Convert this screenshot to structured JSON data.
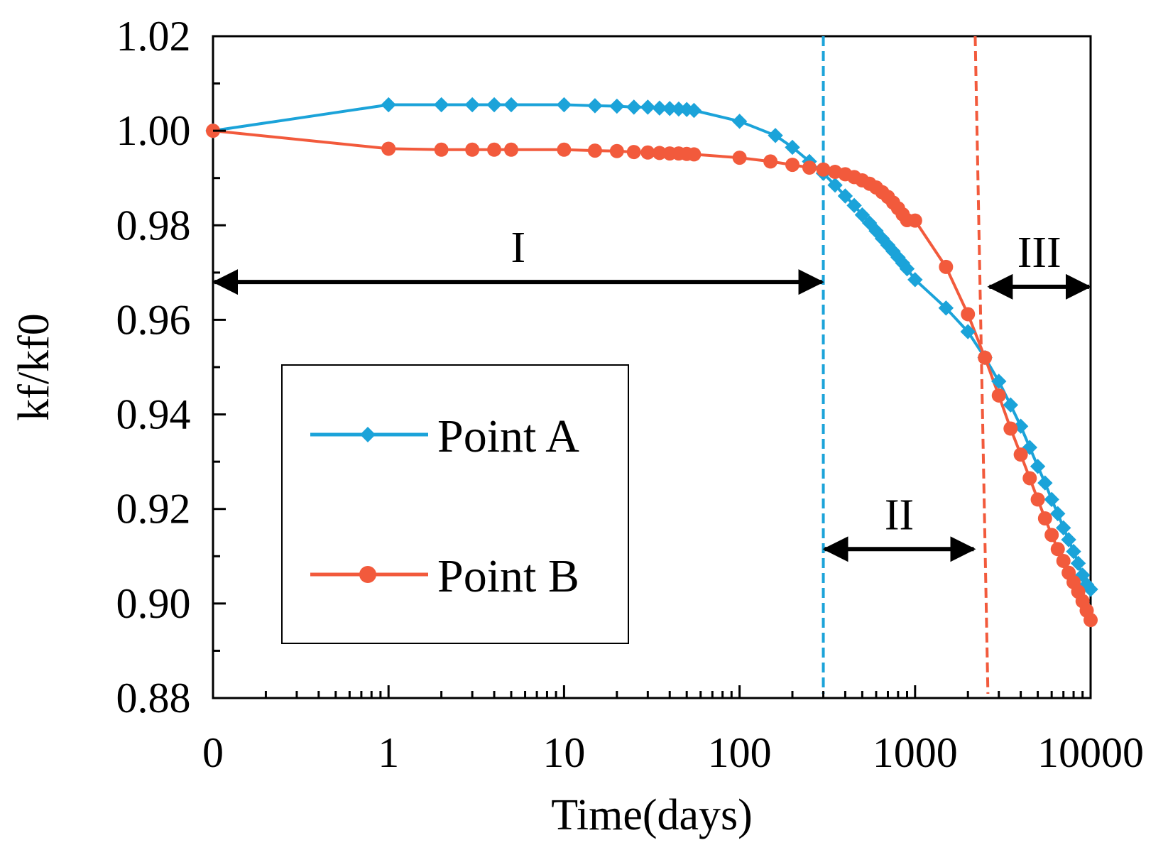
{
  "chart_data": {
    "type": "line",
    "title": "",
    "xlabel": "Time(days)",
    "ylabel": "kf/kf0",
    "xscale": "log",
    "xlim": [
      0.1,
      10000
    ],
    "ylim": [
      0.88,
      1.02
    ],
    "x_tick_values": [
      0.1,
      1,
      10,
      100,
      1000,
      10000
    ],
    "x_tick_labels": [
      "0",
      "1",
      "10",
      "100",
      "1000",
      "10000"
    ],
    "y_tick_values": [
      1.02,
      1.0,
      0.98,
      0.96,
      0.94,
      0.92,
      0.9,
      0.88
    ],
    "y_tick_labels": [
      "1.02",
      "1.00",
      "0.98",
      "0.96",
      "0.94",
      "0.92",
      "0.90",
      "0.88"
    ],
    "legend_position": "lower-left",
    "colors": {
      "point_a": "#1ba3d9",
      "point_b": "#f25a3c",
      "annotation": "#000000"
    },
    "series": [
      {
        "name": "Point A",
        "marker": "diamond",
        "x": [
          0.1,
          1,
          2,
          3,
          4,
          5,
          10,
          15,
          20,
          25,
          30,
          35,
          40,
          45,
          50,
          55,
          100,
          160,
          200,
          250,
          300,
          350,
          400,
          450,
          500,
          550,
          600,
          650,
          700,
          750,
          800,
          850,
          900,
          1000,
          1500,
          2000,
          2500,
          3000,
          3500,
          4000,
          4500,
          5000,
          5500,
          6000,
          6500,
          7000,
          7500,
          8000,
          8500,
          9000,
          9500,
          10000
        ],
        "y": [
          1.0,
          1.0055,
          1.0055,
          1.0055,
          1.0055,
          1.0055,
          1.0055,
          1.0053,
          1.0052,
          1.005,
          1.005,
          1.0048,
          1.0047,
          1.0046,
          1.0045,
          1.0043,
          1.002,
          0.999,
          0.9965,
          0.9935,
          0.991,
          0.9885,
          0.9862,
          0.9842,
          0.9822,
          0.9805,
          0.9788,
          0.9772,
          0.9758,
          0.9745,
          0.9732,
          0.972,
          0.9708,
          0.9685,
          0.9625,
          0.9575,
          0.952,
          0.947,
          0.942,
          0.9375,
          0.933,
          0.929,
          0.9255,
          0.922,
          0.919,
          0.916,
          0.9135,
          0.911,
          0.9085,
          0.906,
          0.904,
          0.903
        ]
      },
      {
        "name": "Point B",
        "marker": "circle",
        "x": [
          0.1,
          1,
          2,
          3,
          4,
          5,
          10,
          15,
          20,
          25,
          30,
          35,
          40,
          45,
          50,
          55,
          100,
          150,
          200,
          250,
          300,
          350,
          400,
          450,
          500,
          550,
          600,
          650,
          700,
          750,
          800,
          850,
          900,
          1000,
          1500,
          2000,
          2500,
          3000,
          3500,
          4000,
          4500,
          5000,
          5500,
          6000,
          6500,
          7000,
          7500,
          8000,
          8500,
          9000,
          9500,
          10000
        ],
        "y": [
          1.0,
          0.9962,
          0.996,
          0.996,
          0.996,
          0.996,
          0.996,
          0.9958,
          0.9957,
          0.9955,
          0.9954,
          0.9953,
          0.9952,
          0.9952,
          0.9951,
          0.995,
          0.9943,
          0.9935,
          0.9928,
          0.9922,
          0.9918,
          0.9913,
          0.9908,
          0.9902,
          0.9895,
          0.9888,
          0.988,
          0.987,
          0.986,
          0.9848,
          0.9836,
          0.9823,
          0.9811,
          0.981,
          0.9712,
          0.9612,
          0.952,
          0.944,
          0.937,
          0.9315,
          0.9265,
          0.922,
          0.918,
          0.9145,
          0.9115,
          0.909,
          0.9065,
          0.9045,
          0.9025,
          0.9005,
          0.8985,
          0.8965
        ]
      }
    ],
    "reference_lines": [
      {
        "name": "boundary-i-ii",
        "x": 300,
        "color": "#1ba3d9",
        "style": "dashed"
      },
      {
        "name": "boundary-ii-iii",
        "x_top": 2200,
        "x_bottom": 2600,
        "color": "#f25a3c",
        "style": "dashed"
      }
    ],
    "regions": [
      {
        "label": "I",
        "x_start": 0.1,
        "x_end": 300,
        "y": 0.968
      },
      {
        "label": "II",
        "x_start": 300,
        "x_end": 2200,
        "y": 0.9115
      },
      {
        "label": "III",
        "x_start": 2600,
        "x_end": 10000,
        "y": 0.967
      }
    ]
  }
}
